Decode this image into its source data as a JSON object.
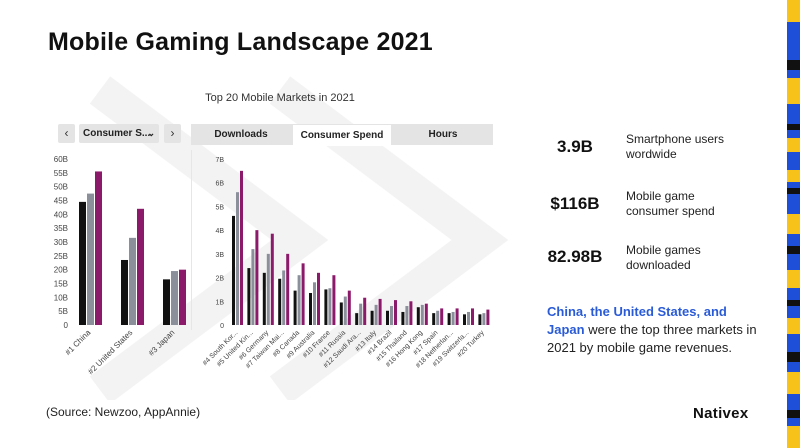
{
  "slide": {
    "title": "Mobile Gaming Landscape 2021",
    "source": "(Source: Newzoo, AppAnnie)",
    "logo": "Nativex"
  },
  "chart_header": {
    "title": "Top 20 Mobile Markets in 2021",
    "prev_label": "‹",
    "next_label": "›",
    "selector_value": "Consumer S...",
    "tabs": [
      {
        "label": "Downloads",
        "active": false
      },
      {
        "label": "Consumer Spend",
        "active": true
      },
      {
        "label": "Hours",
        "active": false
      }
    ]
  },
  "chart_data": [
    {
      "type": "bar",
      "categories": [
        "#1 China",
        "#2 United States",
        "#3 Japan"
      ],
      "series": [
        {
          "color": "#111111",
          "values": [
            44.5,
            23.5,
            16.5
          ]
        },
        {
          "color": "#8a8f9a",
          "values": [
            47.5,
            31.5,
            19.5
          ]
        },
        {
          "color": "#8c1a6a",
          "values": [
            55.5,
            42,
            20
          ]
        }
      ],
      "yticks": [
        "0",
        "5B",
        "10B",
        "15B",
        "20B",
        "25B",
        "30B",
        "35B",
        "40B",
        "45B",
        "50B",
        "55B",
        "60B"
      ],
      "ylim": [
        0,
        60
      ]
    },
    {
      "type": "bar",
      "categories": [
        "#4 South Kor...",
        "#5 United Kin...",
        "#6 Germany",
        "#7 Taiwan Mai...",
        "#8 Canada",
        "#9 Australia",
        "#10 France",
        "#11 Russia",
        "#12 Saudi Ara...",
        "#13 Italy",
        "#14 Brazil",
        "#15 Thailand",
        "#16 Hong Kong",
        "#17 Spain",
        "#18 Netherlan...",
        "#19 Switzerla...",
        "#20 Turkey"
      ],
      "series": [
        {
          "color": "#111111",
          "values": [
            4.6,
            2.4,
            2.2,
            1.95,
            1.45,
            1.35,
            1.5,
            0.95,
            0.5,
            0.6,
            0.6,
            0.55,
            0.75,
            0.5,
            0.5,
            0.45,
            0.45
          ]
        },
        {
          "color": "#8a8f9a",
          "values": [
            5.6,
            3.2,
            3.0,
            2.3,
            2.1,
            1.8,
            1.55,
            1.2,
            0.9,
            0.85,
            0.8,
            0.8,
            0.85,
            0.6,
            0.55,
            0.55,
            0.5
          ]
        },
        {
          "color": "#8c1a6a",
          "values": [
            6.5,
            4.0,
            3.85,
            3.0,
            2.6,
            2.2,
            2.1,
            1.45,
            1.15,
            1.1,
            1.05,
            1.0,
            0.9,
            0.7,
            0.7,
            0.7,
            0.65
          ]
        }
      ],
      "yticks": [
        "0",
        "1B",
        "2B",
        "3B",
        "4B",
        "5B",
        "6B",
        "7B"
      ],
      "ylim": [
        0,
        7
      ]
    }
  ],
  "stats": [
    {
      "value": "3.9B",
      "label": "Smartphone users wordwide"
    },
    {
      "value": "$116B",
      "label": "Mobile game consumer spend"
    },
    {
      "value": "82.98B",
      "label": "Mobile games downloaded"
    }
  ],
  "description": {
    "highlight": "China, the United States, and Japan",
    "rest": " were the top three markets in 2021 by mobile game revenues."
  },
  "colors": {
    "accent_blue": "#2a5bd7",
    "stripe_yellow": "#f7c21a",
    "stripe_blue": "#1d4fd8"
  }
}
